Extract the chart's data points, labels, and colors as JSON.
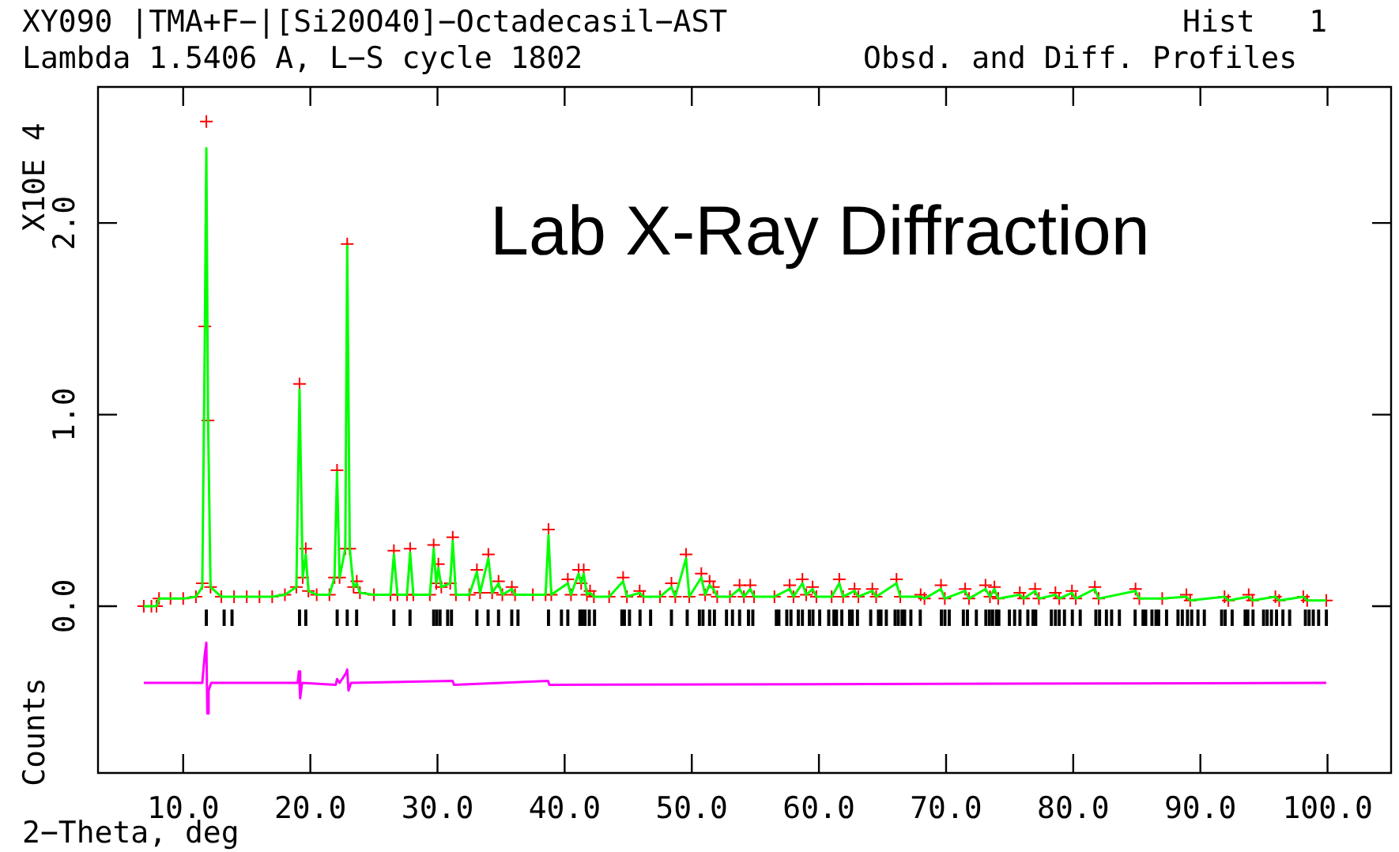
{
  "chart_data": {
    "type": "scatter",
    "title": "XY090 |TMA+F−|[Si20O40]−Octadecasil−AST",
    "subtitle": "Lambda 1.5406 A, L−S cycle 1802",
    "xlabel": "2−Theta, deg",
    "ylabel": "Counts",
    "annotations": [
      "Hist   1",
      "Obsd. and Diff. Profiles",
      "X10E 4",
      "Lab X-Ray Diffraction"
    ],
    "xlim": [
      3.3,
      105
    ],
    "ylim": [
      -0.87,
      2.71
    ],
    "xticks": [
      {
        "value": 10,
        "label": "10.0"
      },
      {
        "value": 20,
        "label": "20.0"
      },
      {
        "value": 30,
        "label": "30.0"
      },
      {
        "value": 40,
        "label": "40.0"
      },
      {
        "value": 50,
        "label": "50.0"
      },
      {
        "value": 60,
        "label": "60.0"
      },
      {
        "value": 70,
        "label": "70.0"
      },
      {
        "value": 80,
        "label": "80.0"
      },
      {
        "value": 90,
        "label": "90.0"
      },
      {
        "value": 100,
        "label": "100.0"
      }
    ],
    "yticks": [
      {
        "value": 0,
        "label": "0.0"
      },
      {
        "value": 1,
        "label": "1.0"
      },
      {
        "value": 2,
        "label": "2.0"
      }
    ],
    "grid": false,
    "legend": false,
    "series": [
      {
        "marker": "cross",
        "color": "#ff0000",
        "x": [
          6.9,
          7.5,
          7.9,
          8.1,
          9,
          10,
          11,
          11.5,
          11.7,
          11.82,
          11.95,
          12.15,
          13,
          14,
          15,
          16,
          17,
          18,
          18.9,
          19.15,
          19.4,
          19.64,
          19.85,
          20.5,
          21.5,
          21.9,
          22.1,
          22.3,
          22.75,
          22.9,
          23.1,
          23.4,
          23.65,
          23.9,
          25,
          26.3,
          26.57,
          26.85,
          27.6,
          27.85,
          28.1,
          29.4,
          29.7,
          29.9,
          30.07,
          30.3,
          31,
          31.2,
          31.45,
          32.5,
          33.1,
          33.35,
          34,
          34.3,
          34.8,
          35.1,
          35.85,
          36.1,
          37.5,
          38.5,
          38.73,
          38.95,
          40.25,
          40.5,
          41.1,
          41.3,
          41.5,
          41.75,
          42,
          42.3,
          43.5,
          44.6,
          44.9,
          45.9,
          46.2,
          47.5,
          48.4,
          48.7,
          49.55,
          49.8,
          50.75,
          51.05,
          51.4,
          51.7,
          52,
          53,
          53.76,
          54.1,
          54.6,
          54.9,
          56.5,
          57.7,
          58,
          58.7,
          59,
          59.5,
          59.8,
          61,
          61.6,
          61.9,
          62.8,
          63.1,
          64.2,
          64.5,
          66.1,
          66.4,
          68,
          68.3,
          69.6,
          69.9,
          71.5,
          71.8,
          73.1,
          73.45,
          73.8,
          74.1,
          75.8,
          76.1,
          77,
          77.3,
          78.6,
          78.9,
          79.9,
          80.2,
          81.7,
          82,
          84.9,
          85.2,
          87,
          88.9,
          89.2,
          91.9,
          92.2,
          93.8,
          94.1,
          95.9,
          96.2,
          98.1,
          98.4,
          99.9
        ],
        "values": [
          0,
          0,
          0,
          0.04,
          0.04,
          0.04,
          0.05,
          0.12,
          1.46,
          2.53,
          0.97,
          0.1,
          0.05,
          0.05,
          0.05,
          0.05,
          0.05,
          0.06,
          0.1,
          1.16,
          0.15,
          0.3,
          0.08,
          0.06,
          0.06,
          0.15,
          0.71,
          0.15,
          0.3,
          1.89,
          0.3,
          0.1,
          0.13,
          0.07,
          0.06,
          0.06,
          0.29,
          0.06,
          0.06,
          0.3,
          0.06,
          0.06,
          0.32,
          0.12,
          0.22,
          0.1,
          0.12,
          0.36,
          0.06,
          0.06,
          0.19,
          0.07,
          0.27,
          0.07,
          0.13,
          0.06,
          0.1,
          0.06,
          0.06,
          0.06,
          0.4,
          0.06,
          0.14,
          0.06,
          0.19,
          0.12,
          0.19,
          0.06,
          0.08,
          0.05,
          0.05,
          0.15,
          0.05,
          0.08,
          0.05,
          0.05,
          0.12,
          0.05,
          0.27,
          0.05,
          0.17,
          0.06,
          0.13,
          0.1,
          0.05,
          0.05,
          0.11,
          0.05,
          0.11,
          0.05,
          0.05,
          0.11,
          0.05,
          0.14,
          0.06,
          0.1,
          0.05,
          0.05,
          0.14,
          0.05,
          0.09,
          0.05,
          0.09,
          0.05,
          0.14,
          0.05,
          0.06,
          0.04,
          0.11,
          0.04,
          0.09,
          0.04,
          0.11,
          0.05,
          0.1,
          0.04,
          0.07,
          0.04,
          0.09,
          0.04,
          0.07,
          0.04,
          0.08,
          0.04,
          0.1,
          0.04,
          0.09,
          0.04,
          0.04,
          0.06,
          0.03,
          0.05,
          0.03,
          0.06,
          0.03,
          0.05,
          0.03,
          0.05,
          0.03,
          0.03
        ]
      },
      {
        "type": "line",
        "color": "#00ff00",
        "x": [
          6.9,
          7.5,
          7.9,
          8.1,
          9,
          10,
          11,
          11.5,
          11.7,
          11.82,
          11.95,
          12.15,
          13,
          14,
          15,
          16,
          17,
          18,
          18.9,
          19.15,
          19.4,
          19.64,
          19.85,
          20.5,
          21.5,
          21.9,
          22.1,
          22.3,
          22.75,
          22.9,
          23.1,
          23.4,
          23.65,
          23.9,
          25,
          26.3,
          26.57,
          26.85,
          27.6,
          27.85,
          28.1,
          29.4,
          29.7,
          29.9,
          30.07,
          30.3,
          31,
          31.2,
          31.45,
          32.5,
          33.1,
          33.35,
          34,
          34.3,
          34.8,
          35.1,
          35.85,
          36.1,
          37.5,
          38.5,
          38.73,
          38.95,
          40.25,
          40.5,
          41.1,
          41.3,
          41.5,
          41.75,
          42,
          42.3,
          43.5,
          44.6,
          44.9,
          45.9,
          46.2,
          47.5,
          48.4,
          48.7,
          49.55,
          49.8,
          50.75,
          51.05,
          51.4,
          51.7,
          52,
          53,
          53.76,
          54.1,
          54.6,
          54.9,
          56.5,
          57.7,
          58,
          58.7,
          59,
          59.5,
          59.8,
          61,
          61.6,
          61.9,
          62.8,
          63.1,
          64.2,
          64.5,
          66.1,
          66.4,
          68,
          68.3,
          69.6,
          69.9,
          71.5,
          71.8,
          73.1,
          73.45,
          73.8,
          74.1,
          75.8,
          76.1,
          77,
          77.3,
          78.6,
          78.9,
          79.9,
          80.2,
          81.7,
          82,
          84.9,
          85.2,
          87,
          88.9,
          89.2,
          91.9,
          92.2,
          93.8,
          94.1,
          95.9,
          96.2,
          98.1,
          98.4,
          99.9
        ],
        "values": [
          0,
          0,
          0,
          0.04,
          0.04,
          0.04,
          0.05,
          0.1,
          1.4,
          2.39,
          1.0,
          0.1,
          0.05,
          0.05,
          0.05,
          0.05,
          0.05,
          0.06,
          0.1,
          1.13,
          0.15,
          0.27,
          0.08,
          0.06,
          0.06,
          0.15,
          0.7,
          0.15,
          0.3,
          1.88,
          0.3,
          0.1,
          0.12,
          0.07,
          0.06,
          0.06,
          0.27,
          0.06,
          0.06,
          0.28,
          0.06,
          0.06,
          0.3,
          0.12,
          0.2,
          0.1,
          0.12,
          0.34,
          0.06,
          0.06,
          0.18,
          0.07,
          0.25,
          0.07,
          0.12,
          0.06,
          0.09,
          0.06,
          0.06,
          0.06,
          0.37,
          0.06,
          0.12,
          0.06,
          0.17,
          0.12,
          0.17,
          0.06,
          0.07,
          0.05,
          0.05,
          0.13,
          0.05,
          0.07,
          0.05,
          0.05,
          0.1,
          0.05,
          0.25,
          0.05,
          0.15,
          0.06,
          0.11,
          0.09,
          0.05,
          0.05,
          0.09,
          0.05,
          0.09,
          0.05,
          0.05,
          0.09,
          0.05,
          0.12,
          0.06,
          0.09,
          0.05,
          0.05,
          0.12,
          0.05,
          0.08,
          0.05,
          0.08,
          0.05,
          0.12,
          0.05,
          0.05,
          0.04,
          0.09,
          0.04,
          0.08,
          0.04,
          0.09,
          0.05,
          0.09,
          0.04,
          0.06,
          0.04,
          0.08,
          0.04,
          0.06,
          0.04,
          0.07,
          0.04,
          0.09,
          0.04,
          0.08,
          0.04,
          0.04,
          0.05,
          0.03,
          0.05,
          0.03,
          0.05,
          0.03,
          0.05,
          0.03,
          0.05,
          0.03,
          0.03
        ]
      },
      {
        "type": "line",
        "color": "#ff00ff",
        "x": [
          6.9,
          11.5,
          11.7,
          11.82,
          11.9,
          12,
          12.2,
          19,
          19.1,
          19.2,
          19.35,
          22,
          22.1,
          22.3,
          22.8,
          22.9,
          23,
          23.2,
          31.2,
          31.3,
          38.7,
          38.8,
          99.9
        ],
        "values": [
          -0.4,
          -0.4,
          -0.25,
          -0.19,
          -0.56,
          -0.44,
          -0.4,
          -0.4,
          -0.34,
          -0.48,
          -0.4,
          -0.41,
          -0.38,
          -0.4,
          -0.35,
          -0.33,
          -0.44,
          -0.4,
          -0.39,
          -0.41,
          -0.39,
          -0.41,
          -0.4
        ]
      },
      {
        "type": "bar",
        "color": "#000000",
        "base": [
          -0.1,
          -0.1,
          -0.1,
          -0.1,
          -0.1,
          -0.1,
          -0.1,
          -0.1,
          -0.1,
          -0.1,
          -0.1,
          -0.1,
          -0.1,
          -0.1,
          -0.1,
          -0.1,
          -0.1,
          -0.1,
          -0.1,
          -0.1,
          -0.1,
          -0.1,
          -0.1,
          -0.1,
          -0.1,
          -0.1,
          -0.1,
          -0.1,
          -0.1,
          -0.1,
          -0.1,
          -0.1,
          -0.1,
          -0.1,
          -0.1,
          -0.1,
          -0.1,
          -0.1,
          -0.1,
          -0.1,
          -0.1,
          -0.1,
          -0.1,
          -0.1,
          -0.1,
          -0.1,
          -0.1,
          -0.1,
          -0.1,
          -0.1,
          -0.1,
          -0.1,
          -0.1,
          -0.1,
          -0.1,
          -0.1,
          -0.1,
          -0.1,
          -0.1,
          -0.1,
          -0.1,
          -0.1,
          -0.1,
          -0.1,
          -0.1,
          -0.1,
          -0.1,
          -0.1,
          -0.1,
          -0.1,
          -0.1,
          -0.1,
          -0.1,
          -0.1,
          -0.1,
          -0.1,
          -0.1,
          -0.1,
          -0.1,
          -0.1,
          -0.1,
          -0.1,
          -0.1,
          -0.1,
          -0.1,
          -0.1,
          -0.1,
          -0.1,
          -0.1,
          -0.1,
          -0.1,
          -0.1,
          -0.1,
          -0.1,
          -0.1,
          -0.1,
          -0.1,
          -0.1,
          -0.1,
          -0.1,
          -0.1,
          -0.1,
          -0.1,
          -0.1,
          -0.1,
          -0.1,
          -0.1,
          -0.1,
          -0.1,
          -0.1,
          -0.1,
          -0.1,
          -0.1,
          -0.1,
          -0.1,
          -0.1,
          -0.1,
          -0.1,
          -0.1,
          -0.1,
          -0.1,
          -0.1,
          -0.1,
          -0.1,
          -0.1,
          -0.1,
          -0.1,
          -0.1
        ],
        "x": [
          11.82,
          13.22,
          13.84,
          19.15,
          19.64,
          22.11,
          22.9,
          23.64,
          26.57,
          27.84,
          29.7,
          29.94,
          30.2,
          30.8,
          31.1,
          33.1,
          33.98,
          34.8,
          35.84,
          36.33,
          38.73,
          39.75,
          40.25,
          41.2,
          41.4,
          41.6,
          41.94,
          42.35,
          44.5,
          44.7,
          45.1,
          45.93,
          46.76,
          48.4,
          49.64,
          50.6,
          50.88,
          51.4,
          51.78,
          52.73,
          53.2,
          53.76,
          54.46,
          54.8,
          56.65,
          56.85,
          57.47,
          57.8,
          58.38,
          58.7,
          59.25,
          59.53,
          60.06,
          60.77,
          61.18,
          61.38,
          61.8,
          62.41,
          62.62,
          63.03,
          64.07,
          64.68,
          64.88,
          65.3,
          65.99,
          66.24,
          66.54,
          66.74,
          67.23,
          67.97,
          69.63,
          69.91,
          70.25,
          71.36,
          71.68,
          72.38,
          73.13,
          73.41,
          73.66,
          73.96,
          74.15,
          74.98,
          75.39,
          75.81,
          76.43,
          76.84,
          77.05,
          78.28,
          78.6,
          78.9,
          79.31,
          79.93,
          80.55,
          81.78,
          82.07,
          82.61,
          83.02,
          83.63,
          84.87,
          85.49,
          85.7,
          86.19,
          86.51,
          86.72,
          87.34,
          88.24,
          88.58,
          88.99,
          89.32,
          89.81,
          90.31,
          91.67,
          91.95,
          92.5,
          93.52,
          93.73,
          94.14,
          94.97,
          95.25,
          95.59,
          95.99,
          96.49,
          97.02,
          98.26,
          98.55,
          98.88,
          99.3,
          99.91
        ],
        "values": [
          0.08,
          0.08,
          0.08,
          0.08,
          0.08,
          0.08,
          0.08,
          0.08,
          0.08,
          0.08,
          0.08,
          0.08,
          0.08,
          0.08,
          0.08,
          0.08,
          0.08,
          0.08,
          0.08,
          0.08,
          0.08,
          0.08,
          0.08,
          0.08,
          0.08,
          0.08,
          0.08,
          0.08,
          0.08,
          0.08,
          0.08,
          0.08,
          0.08,
          0.08,
          0.08,
          0.08,
          0.08,
          0.08,
          0.08,
          0.08,
          0.08,
          0.08,
          0.08,
          0.08,
          0.08,
          0.08,
          0.08,
          0.08,
          0.08,
          0.08,
          0.08,
          0.08,
          0.08,
          0.08,
          0.08,
          0.08,
          0.08,
          0.08,
          0.08,
          0.08,
          0.08,
          0.08,
          0.08,
          0.08,
          0.08,
          0.08,
          0.08,
          0.08,
          0.08,
          0.08,
          0.08,
          0.08,
          0.08,
          0.08,
          0.08,
          0.08,
          0.08,
          0.08,
          0.08,
          0.08,
          0.08,
          0.08,
          0.08,
          0.08,
          0.08,
          0.08,
          0.08,
          0.08,
          0.08,
          0.08,
          0.08,
          0.08,
          0.08,
          0.08,
          0.08,
          0.08,
          0.08,
          0.08,
          0.08,
          0.08,
          0.08,
          0.08,
          0.08,
          0.08,
          0.08,
          0.08,
          0.08,
          0.08,
          0.08,
          0.08,
          0.08,
          0.08,
          0.08,
          0.08,
          0.08,
          0.08,
          0.08,
          0.08,
          0.08,
          0.08,
          0.08,
          0.08,
          0.08,
          0.08,
          0.08,
          0.08,
          0.08,
          0.08
        ]
      }
    ]
  }
}
